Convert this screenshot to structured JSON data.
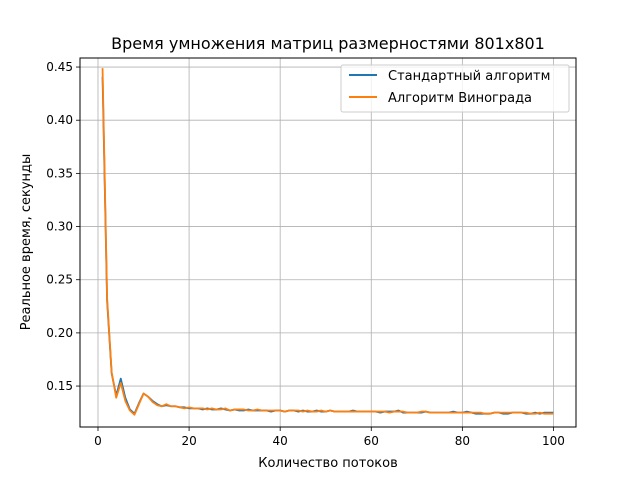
{
  "chart_data": {
    "type": "line",
    "title": "Время умножения матриц размерностями 801x801",
    "xlabel": "Количество потоков",
    "ylabel": "Реальное время, секунды",
    "xlim": [
      -3.95,
      104.95
    ],
    "ylim": [
      0.1115,
      0.4585
    ],
    "xticks": [
      0,
      20,
      40,
      60,
      80,
      100
    ],
    "yticks": [
      0.15,
      0.2,
      0.25,
      0.3,
      0.35,
      0.4,
      0.45
    ],
    "ytick_labels": [
      "0.15",
      "0.20",
      "0.25",
      "0.30",
      "0.35",
      "0.40",
      "0.45"
    ],
    "grid": true,
    "legend_position": "top-right",
    "x": [
      1,
      2,
      3,
      4,
      5,
      6,
      7,
      8,
      9,
      10,
      11,
      12,
      13,
      14,
      15,
      16,
      17,
      18,
      19,
      20,
      21,
      22,
      23,
      24,
      25,
      26,
      27,
      28,
      29,
      30,
      31,
      32,
      33,
      34,
      35,
      36,
      37,
      38,
      39,
      40,
      41,
      42,
      43,
      44,
      45,
      46,
      47,
      48,
      49,
      50,
      51,
      52,
      53,
      54,
      55,
      56,
      57,
      58,
      59,
      60,
      61,
      62,
      63,
      64,
      65,
      66,
      67,
      68,
      69,
      70,
      71,
      72,
      73,
      74,
      75,
      76,
      77,
      78,
      79,
      80,
      81,
      82,
      83,
      84,
      85,
      86,
      87,
      88,
      89,
      90,
      91,
      92,
      93,
      94,
      95,
      96,
      97,
      98,
      99,
      100
    ],
    "series": [
      {
        "name": "Стандартный алгоритм",
        "color": "#1f77b4",
        "values": [
          0.441,
          0.23,
          0.162,
          0.141,
          0.157,
          0.139,
          0.128,
          0.124,
          0.134,
          0.143,
          0.14,
          0.136,
          0.133,
          0.131,
          0.132,
          0.131,
          0.131,
          0.13,
          0.13,
          0.129,
          0.129,
          0.129,
          0.128,
          0.129,
          0.128,
          0.128,
          0.129,
          0.128,
          0.127,
          0.128,
          0.127,
          0.127,
          0.128,
          0.127,
          0.127,
          0.127,
          0.127,
          0.126,
          0.127,
          0.127,
          0.126,
          0.127,
          0.127,
          0.126,
          0.127,
          0.126,
          0.126,
          0.127,
          0.126,
          0.126,
          0.127,
          0.126,
          0.126,
          0.126,
          0.126,
          0.127,
          0.126,
          0.126,
          0.126,
          0.126,
          0.126,
          0.125,
          0.126,
          0.126,
          0.126,
          0.127,
          0.125,
          0.125,
          0.125,
          0.125,
          0.125,
          0.126,
          0.125,
          0.125,
          0.125,
          0.125,
          0.125,
          0.126,
          0.125,
          0.125,
          0.126,
          0.125,
          0.124,
          0.124,
          0.124,
          0.124,
          0.125,
          0.125,
          0.124,
          0.124,
          0.125,
          0.125,
          0.125,
          0.124,
          0.124,
          0.125,
          0.124,
          0.125,
          0.125,
          0.125
        ]
      },
      {
        "name": "Алгоритм Винограда",
        "color": "#ff7f0e",
        "values": [
          0.449,
          0.233,
          0.163,
          0.139,
          0.153,
          0.136,
          0.127,
          0.123,
          0.133,
          0.143,
          0.14,
          0.135,
          0.132,
          0.131,
          0.133,
          0.131,
          0.131,
          0.13,
          0.129,
          0.13,
          0.129,
          0.129,
          0.129,
          0.128,
          0.129,
          0.128,
          0.128,
          0.129,
          0.127,
          0.128,
          0.128,
          0.128,
          0.127,
          0.127,
          0.128,
          0.127,
          0.127,
          0.127,
          0.127,
          0.127,
          0.126,
          0.127,
          0.127,
          0.127,
          0.126,
          0.127,
          0.126,
          0.126,
          0.127,
          0.126,
          0.127,
          0.126,
          0.126,
          0.126,
          0.126,
          0.126,
          0.126,
          0.126,
          0.126,
          0.126,
          0.126,
          0.126,
          0.126,
          0.125,
          0.126,
          0.126,
          0.126,
          0.125,
          0.125,
          0.125,
          0.126,
          0.126,
          0.125,
          0.125,
          0.125,
          0.125,
          0.125,
          0.125,
          0.125,
          0.125,
          0.125,
          0.125,
          0.125,
          0.125,
          0.124,
          0.124,
          0.125,
          0.125,
          0.125,
          0.125,
          0.125,
          0.125,
          0.125,
          0.125,
          0.124,
          0.124,
          0.125,
          0.124,
          0.124,
          0.124
        ]
      }
    ]
  }
}
